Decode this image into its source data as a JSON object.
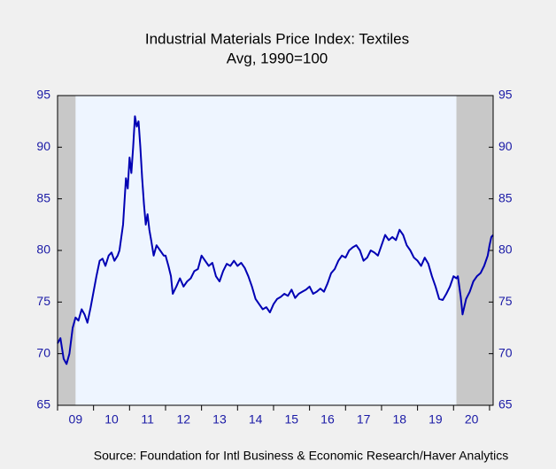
{
  "chart_data": {
    "type": "line",
    "title": "Industrial Materials Price Index: Textiles",
    "subtitle": "Avg, 1990=100",
    "source": "Source:  Foundation for Intl Business & Economic Research/Haver Analytics",
    "x": [
      2009.0,
      2009.08,
      2009.17,
      2009.25,
      2009.33,
      2009.42,
      2009.5,
      2009.58,
      2009.67,
      2009.75,
      2009.83,
      2009.92,
      2010.0,
      2010.08,
      2010.17,
      2010.25,
      2010.33,
      2010.42,
      2010.5,
      2010.58,
      2010.67,
      2010.72,
      2010.82,
      2010.9,
      2010.95,
      2011.0,
      2011.05,
      2011.1,
      2011.15,
      2011.2,
      2011.25,
      2011.3,
      2011.35,
      2011.4,
      2011.45,
      2011.5,
      2011.55,
      2011.6,
      2011.67,
      2011.75,
      2011.85,
      2011.95,
      2012.0,
      2012.08,
      2012.15,
      2012.2,
      2012.3,
      2012.4,
      2012.5,
      2012.6,
      2012.7,
      2012.8,
      2012.9,
      2013.0,
      2013.1,
      2013.2,
      2013.3,
      2013.4,
      2013.5,
      2013.6,
      2013.7,
      2013.8,
      2013.9,
      2014.0,
      2014.1,
      2014.2,
      2014.3,
      2014.4,
      2014.5,
      2014.6,
      2014.7,
      2014.8,
      2014.9,
      2015.0,
      2015.1,
      2015.2,
      2015.3,
      2015.4,
      2015.5,
      2015.6,
      2015.7,
      2015.8,
      2015.9,
      2016.0,
      2016.1,
      2016.2,
      2016.3,
      2016.4,
      2016.5,
      2016.6,
      2016.7,
      2016.8,
      2016.9,
      2017.0,
      2017.1,
      2017.2,
      2017.3,
      2017.4,
      2017.5,
      2017.6,
      2017.7,
      2017.8,
      2017.9,
      2018.0,
      2018.1,
      2018.2,
      2018.3,
      2018.4,
      2018.5,
      2018.6,
      2018.7,
      2018.8,
      2018.9,
      2019.0,
      2019.1,
      2019.2,
      2019.3,
      2019.4,
      2019.5,
      2019.6,
      2019.7,
      2019.8,
      2019.9,
      2020.0,
      2020.08,
      2020.12,
      2020.2,
      2020.25,
      2020.35,
      2020.45,
      2020.55,
      2020.65,
      2020.75,
      2020.85,
      2020.95,
      2021.0,
      2021.05,
      2021.1
    ],
    "series": [
      {
        "color": "#0000b4",
        "values": [
          71.0,
          71.5,
          69.5,
          69.0,
          70.0,
          72.5,
          73.5,
          73.2,
          74.3,
          73.8,
          73.0,
          74.5,
          76.0,
          77.5,
          79.0,
          79.2,
          78.5,
          79.5,
          79.8,
          79.0,
          79.5,
          80.0,
          82.5,
          87.0,
          86.0,
          89.0,
          87.5,
          90.0,
          93.0,
          92.0,
          92.5,
          90.0,
          87.0,
          84.5,
          82.5,
          83.5,
          82.0,
          81.0,
          79.5,
          80.5,
          80.0,
          79.5,
          79.5,
          78.5,
          77.5,
          75.8,
          76.5,
          77.3,
          76.5,
          77.0,
          77.3,
          78.0,
          78.2,
          79.5,
          79.0,
          78.5,
          78.8,
          77.5,
          77.0,
          78.0,
          78.7,
          78.5,
          79.0,
          78.5,
          78.8,
          78.3,
          77.5,
          76.5,
          75.3,
          74.8,
          74.3,
          74.5,
          74.0,
          74.8,
          75.3,
          75.5,
          75.8,
          75.6,
          76.2,
          75.4,
          75.8,
          76.0,
          76.2,
          76.5,
          75.8,
          76.0,
          76.3,
          76.0,
          76.8,
          77.8,
          78.2,
          79.0,
          79.5,
          79.3,
          80.0,
          80.3,
          80.5,
          80.0,
          79.0,
          79.3,
          80.0,
          79.8,
          79.5,
          80.5,
          81.5,
          81.0,
          81.3,
          81.0,
          82.0,
          81.5,
          80.5,
          80.0,
          79.3,
          79.0,
          78.5,
          79.3,
          78.7,
          77.5,
          76.5,
          75.3,
          75.2,
          75.8,
          76.5,
          77.5,
          77.3,
          77.5,
          75.5,
          73.8,
          75.3,
          76.0,
          77.0,
          77.5,
          77.8,
          78.5,
          79.5,
          80.5,
          81.3,
          81.5
        ]
      }
    ],
    "recessions": [
      [
        2009.0,
        2009.5
      ],
      [
        2020.08,
        2021.1
      ]
    ],
    "recession_color": "#c8c8c8",
    "xlim": [
      2009.0,
      2021.1
    ],
    "xticks": [
      {
        "value": 2009.5,
        "label": "09"
      },
      {
        "value": 2010.5,
        "label": "10"
      },
      {
        "value": 2011.5,
        "label": "11"
      },
      {
        "value": 2012.5,
        "label": "12"
      },
      {
        "value": 2013.5,
        "label": "13"
      },
      {
        "value": 2014.5,
        "label": "14"
      },
      {
        "value": 2015.5,
        "label": "15"
      },
      {
        "value": 2016.5,
        "label": "16"
      },
      {
        "value": 2017.5,
        "label": "17"
      },
      {
        "value": 2018.5,
        "label": "18"
      },
      {
        "value": 2019.5,
        "label": "19"
      },
      {
        "value": 2020.5,
        "label": "20"
      }
    ],
    "xminorticks": [
      2009,
      2010,
      2011,
      2012,
      2013,
      2014,
      2015,
      2016,
      2017,
      2018,
      2019,
      2020,
      2021
    ],
    "ylim": [
      65,
      95
    ],
    "yticks": [
      65,
      70,
      75,
      80,
      85,
      90,
      95
    ],
    "y2lim": [
      65,
      95
    ],
    "y2ticks": [
      65,
      70,
      75,
      80,
      85,
      90,
      95
    ]
  }
}
